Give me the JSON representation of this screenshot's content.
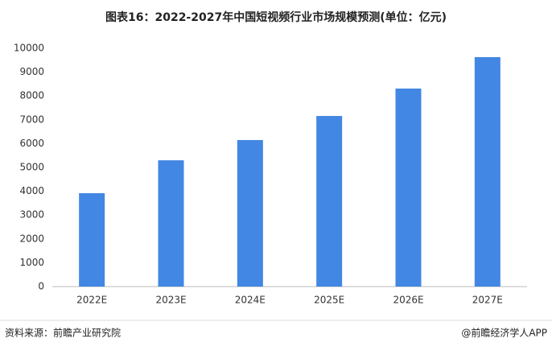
{
  "chart_data": {
    "type": "bar",
    "title": "图表16：2022-2027年中国短视频行业市场规模预测(单位：亿元)",
    "categories": [
      "2022E",
      "2023E",
      "2024E",
      "2025E",
      "2026E",
      "2027E"
    ],
    "values": [
      3920,
      5300,
      6150,
      7160,
      8310,
      9630
    ],
    "color": "#4287e3",
    "ylim": [
      0,
      10000
    ],
    "yticks": [
      0,
      1000,
      2000,
      3000,
      4000,
      5000,
      6000,
      7000,
      8000,
      9000,
      10000
    ],
    "grid": false,
    "source": "资料来源：前瞻产业研究院",
    "credit": "@前瞻经济学人APP"
  }
}
